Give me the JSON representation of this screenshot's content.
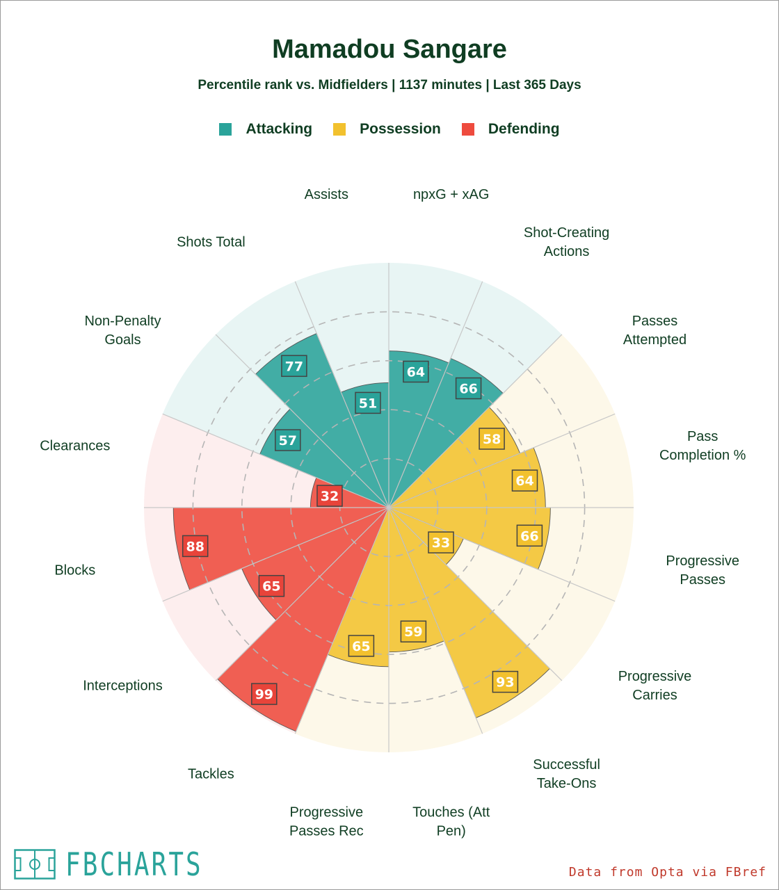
{
  "header": {
    "title": "Mamadou Sangare",
    "subtitle": "Percentile rank vs. Midfielders | 1137 minutes | Last 365 Days"
  },
  "legend": [
    {
      "label": "Attacking",
      "color": "#2aa39a"
    },
    {
      "label": "Possession",
      "color": "#f2c12e"
    },
    {
      "label": "Defending",
      "color": "#ee4b3e"
    }
  ],
  "chart_data": {
    "type": "radial-bar",
    "title": "Mamadou Sangare",
    "subtitle": "Percentile rank vs. Midfielders | 1137 minutes | Last 365 Days",
    "range": [
      0,
      100
    ],
    "gridlines": [
      20,
      40,
      60,
      80,
      100
    ],
    "groups": {
      "Attacking": {
        "fill": "#2aa39a",
        "background": "#e8f5f4",
        "label_bg": "#2aa39a"
      },
      "Possession": {
        "fill": "#f2c12e",
        "background": "#fdf8e9",
        "label_bg": "#f2c12e"
      },
      "Defending": {
        "fill": "#ee4b3e",
        "background": "#fdeeee",
        "label_bg": "#e8443a"
      }
    },
    "metrics": [
      {
        "label": "npxG + xAG",
        "lines": [
          "npxG + xAG"
        ],
        "value": 64,
        "group": "Attacking"
      },
      {
        "label": "Shot-Creating Actions",
        "lines": [
          "Shot-Creating",
          "Actions"
        ],
        "value": 66,
        "group": "Attacking"
      },
      {
        "label": "Passes Attempted",
        "lines": [
          "Passes",
          "Attempted"
        ],
        "value": 58,
        "group": "Possession"
      },
      {
        "label": "Pass Completion %",
        "lines": [
          "Pass",
          "Completion %"
        ],
        "value": 64,
        "group": "Possession"
      },
      {
        "label": "Progressive Passes",
        "lines": [
          "Progressive",
          "Passes"
        ],
        "value": 66,
        "group": "Possession"
      },
      {
        "label": "Progressive Carries",
        "lines": [
          "Progressive",
          "Carries"
        ],
        "value": 33,
        "group": "Possession"
      },
      {
        "label": "Successful Take-Ons",
        "lines": [
          "Successful",
          "Take-Ons"
        ],
        "value": 93,
        "group": "Possession"
      },
      {
        "label": "Touches (Att Pen)",
        "lines": [
          "Touches (Att",
          "Pen)"
        ],
        "value": 59,
        "group": "Possession"
      },
      {
        "label": "Progressive Passes Rec",
        "lines": [
          "Progressive",
          "Passes Rec"
        ],
        "value": 65,
        "group": "Possession"
      },
      {
        "label": "Tackles",
        "lines": [
          "Tackles"
        ],
        "value": 99,
        "group": "Defending"
      },
      {
        "label": "Interceptions",
        "lines": [
          "Interceptions"
        ],
        "value": 65,
        "group": "Defending"
      },
      {
        "label": "Blocks",
        "lines": [
          "Blocks"
        ],
        "value": 88,
        "group": "Defending"
      },
      {
        "label": "Clearances",
        "lines": [
          "Clearances"
        ],
        "value": 32,
        "group": "Defending"
      },
      {
        "label": "Non-Penalty Goals",
        "lines": [
          "Non-Penalty",
          "Goals"
        ],
        "value": 57,
        "group": "Attacking"
      },
      {
        "label": "Shots Total",
        "lines": [
          "Shots Total"
        ],
        "value": 77,
        "group": "Attacking"
      },
      {
        "label": "Assists",
        "lines": [
          "Assists"
        ],
        "value": 51,
        "group": "Attacking"
      }
    ]
  },
  "footer": {
    "brand": "FBCHARTS",
    "source": "Data from Opta via FBref",
    "brand_color": "#2aa39a",
    "source_color": "#c0392b"
  }
}
